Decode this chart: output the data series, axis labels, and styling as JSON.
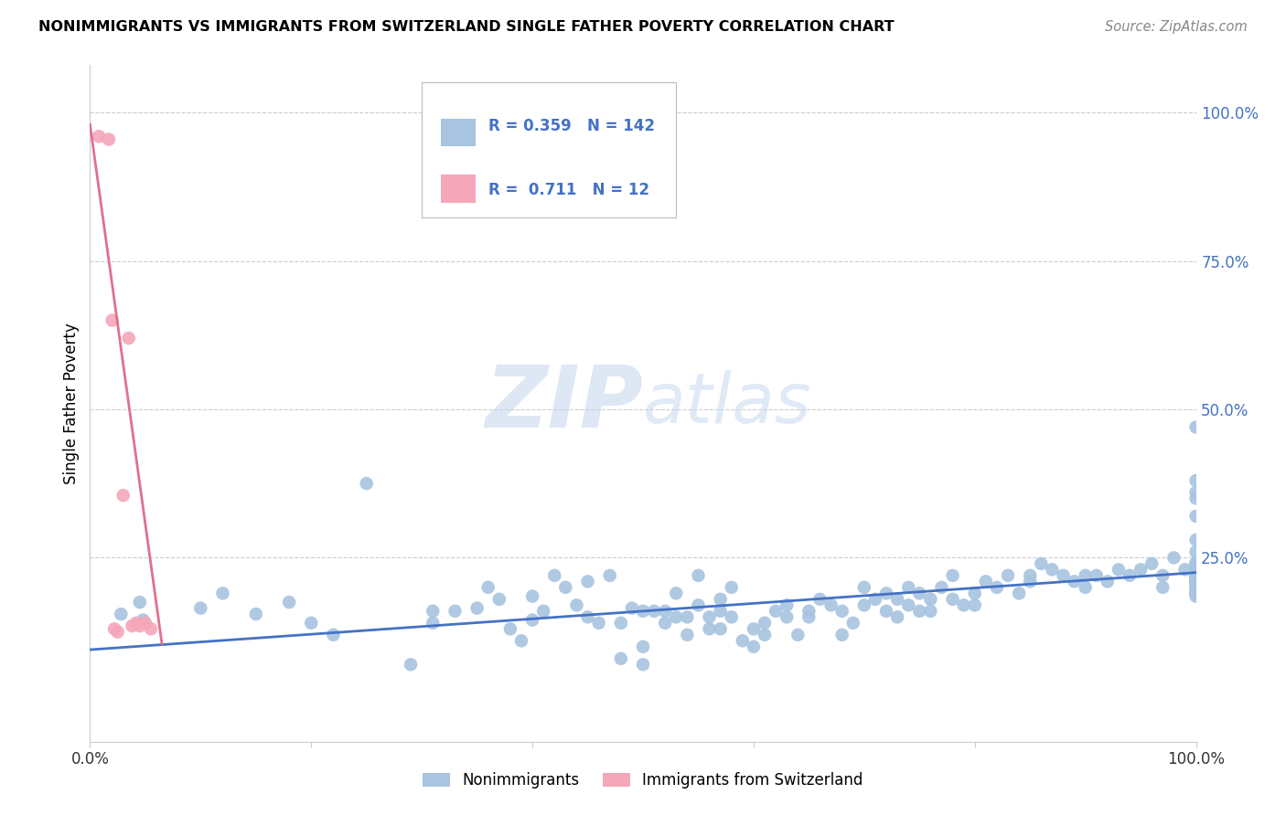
{
  "title": "NONIMMIGRANTS VS IMMIGRANTS FROM SWITZERLAND SINGLE FATHER POVERTY CORRELATION CHART",
  "source": "Source: ZipAtlas.com",
  "ylabel_label": "Single Father Poverty",
  "right_yticks": [
    "100.0%",
    "75.0%",
    "50.0%",
    "25.0%"
  ],
  "right_ytick_vals": [
    1.0,
    0.75,
    0.5,
    0.25
  ],
  "xlim": [
    0.0,
    1.0
  ],
  "ylim": [
    -0.06,
    1.08
  ],
  "nonimm_color": "#a8c4e0",
  "imm_color": "#f4a7b9",
  "nonimm_line_color": "#4472c4",
  "imm_line_color": "#e07090",
  "legend_label1": "Nonimmigrants",
  "legend_label2": "Immigrants from Switzerland",
  "R1": 0.359,
  "N1": 142,
  "R2": 0.711,
  "N2": 12,
  "watermark_zip": "ZIP",
  "watermark_atlas": "atlas",
  "grid_color": "#cccccc",
  "nonimm_scatter_x": [
    0.028,
    0.045,
    0.048,
    0.1,
    0.12,
    0.15,
    0.18,
    0.2,
    0.22,
    0.25,
    0.29,
    0.31,
    0.31,
    0.33,
    0.35,
    0.36,
    0.37,
    0.38,
    0.39,
    0.4,
    0.4,
    0.41,
    0.42,
    0.43,
    0.44,
    0.45,
    0.45,
    0.46,
    0.47,
    0.48,
    0.48,
    0.49,
    0.5,
    0.5,
    0.5,
    0.51,
    0.52,
    0.52,
    0.53,
    0.53,
    0.54,
    0.54,
    0.55,
    0.55,
    0.56,
    0.56,
    0.57,
    0.57,
    0.57,
    0.58,
    0.58,
    0.59,
    0.6,
    0.6,
    0.61,
    0.61,
    0.62,
    0.63,
    0.63,
    0.64,
    0.65,
    0.65,
    0.66,
    0.67,
    0.68,
    0.68,
    0.69,
    0.7,
    0.7,
    0.71,
    0.72,
    0.72,
    0.73,
    0.73,
    0.74,
    0.74,
    0.75,
    0.75,
    0.76,
    0.76,
    0.77,
    0.78,
    0.78,
    0.79,
    0.8,
    0.8,
    0.81,
    0.82,
    0.83,
    0.84,
    0.85,
    0.85,
    0.86,
    0.87,
    0.88,
    0.89,
    0.9,
    0.9,
    0.91,
    0.92,
    0.93,
    0.94,
    0.95,
    0.96,
    0.97,
    0.97,
    0.98,
    0.99,
    1.0,
    1.0,
    1.0,
    1.0,
    1.0,
    1.0,
    1.0,
    1.0,
    1.0,
    1.0,
    1.0,
    1.0,
    1.0,
    1.0,
    1.0,
    1.0,
    1.0,
    1.0,
    1.0,
    1.0,
    1.0,
    1.0,
    1.0,
    1.0,
    1.0,
    1.0,
    1.0,
    1.0,
    1.0,
    1.0,
    1.0,
    1.0,
    1.0,
    1.0
  ],
  "nonimm_scatter_y": [
    0.155,
    0.175,
    0.145,
    0.165,
    0.19,
    0.155,
    0.175,
    0.14,
    0.12,
    0.375,
    0.07,
    0.14,
    0.16,
    0.16,
    0.165,
    0.2,
    0.18,
    0.13,
    0.11,
    0.145,
    0.185,
    0.16,
    0.22,
    0.2,
    0.17,
    0.21,
    0.15,
    0.14,
    0.22,
    0.14,
    0.08,
    0.165,
    0.16,
    0.1,
    0.07,
    0.16,
    0.16,
    0.14,
    0.15,
    0.19,
    0.15,
    0.12,
    0.22,
    0.17,
    0.15,
    0.13,
    0.16,
    0.13,
    0.18,
    0.2,
    0.15,
    0.11,
    0.1,
    0.13,
    0.12,
    0.14,
    0.16,
    0.15,
    0.17,
    0.12,
    0.16,
    0.15,
    0.18,
    0.17,
    0.12,
    0.16,
    0.14,
    0.2,
    0.17,
    0.18,
    0.16,
    0.19,
    0.18,
    0.15,
    0.17,
    0.2,
    0.19,
    0.16,
    0.18,
    0.16,
    0.2,
    0.22,
    0.18,
    0.17,
    0.19,
    0.17,
    0.21,
    0.2,
    0.22,
    0.19,
    0.22,
    0.21,
    0.24,
    0.23,
    0.22,
    0.21,
    0.22,
    0.2,
    0.22,
    0.21,
    0.23,
    0.22,
    0.23,
    0.24,
    0.22,
    0.2,
    0.25,
    0.23,
    0.2,
    0.22,
    0.21,
    0.23,
    0.21,
    0.19,
    0.24,
    0.28,
    0.32,
    0.35,
    0.36,
    0.38,
    0.23,
    0.19,
    0.22,
    0.24,
    0.24,
    0.23,
    0.47,
    0.22,
    0.21,
    0.2,
    0.19,
    0.22,
    0.24,
    0.26,
    0.2,
    0.22,
    0.215,
    0.195,
    0.205,
    0.185,
    0.225,
    0.215
  ],
  "imm_scatter_x": [
    0.008,
    0.017,
    0.02,
    0.022,
    0.025,
    0.03,
    0.035,
    0.038,
    0.042,
    0.045,
    0.05,
    0.055
  ],
  "imm_scatter_y": [
    0.96,
    0.955,
    0.65,
    0.13,
    0.125,
    0.355,
    0.62,
    0.135,
    0.14,
    0.135,
    0.14,
    0.13
  ],
  "nonimm_trend_x": [
    0.0,
    1.0
  ],
  "nonimm_trend_y": [
    0.095,
    0.225
  ],
  "imm_trend_x": [
    0.0,
    0.065
  ],
  "imm_trend_y": [
    0.98,
    0.105
  ]
}
